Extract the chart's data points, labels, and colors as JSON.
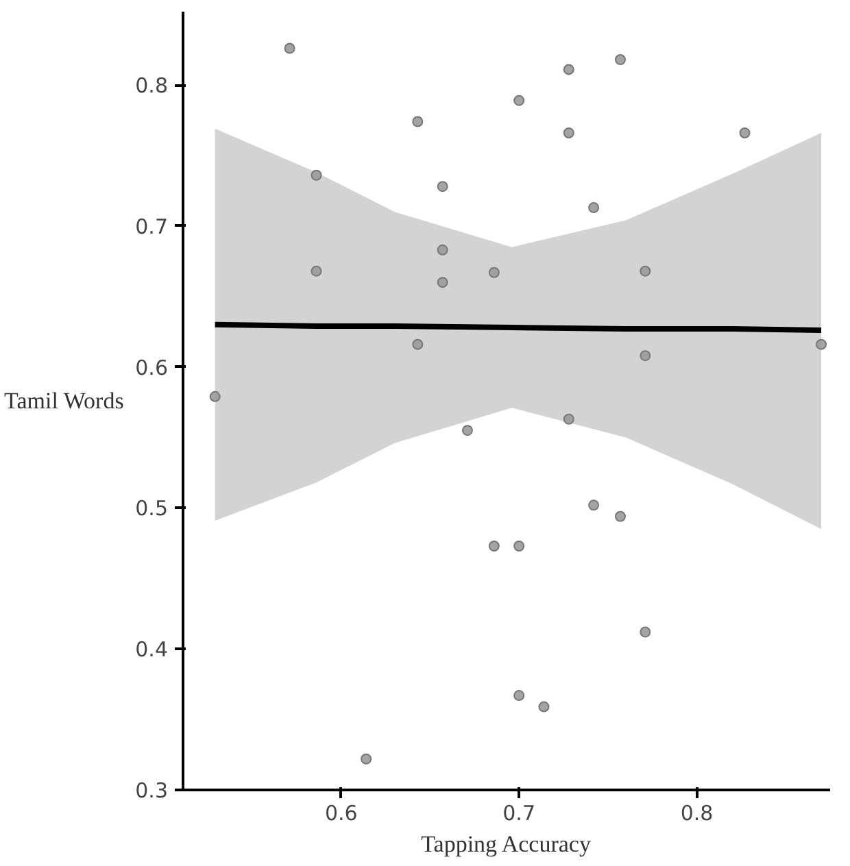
{
  "chart_data": {
    "type": "scatter",
    "xlabel": "Tapping Accuracy",
    "ylabel": "Tamil Words",
    "xlim": [
      0.511,
      0.875
    ],
    "ylim": [
      0.3,
      0.852
    ],
    "xticks": [
      0.6,
      0.7,
      0.8
    ],
    "yticks": [
      0.3,
      0.4,
      0.5,
      0.6,
      0.7,
      0.8
    ],
    "grid": false,
    "marker": "circle",
    "series": [
      {
        "color": "#9a9a9a",
        "x": [
          0.571,
          0.728,
          0.757,
          0.7,
          0.643,
          0.728,
          0.827,
          0.586,
          0.657,
          0.742,
          0.657,
          0.586,
          0.686,
          0.771,
          0.657,
          0.643,
          0.771,
          0.87,
          0.529,
          0.671,
          0.728,
          0.742,
          0.757,
          0.686,
          0.7,
          0.771,
          0.7,
          0.714,
          0.614
        ],
        "values": [
          0.826,
          0.811,
          0.818,
          0.789,
          0.774,
          0.766,
          0.766,
          0.736,
          0.728,
          0.713,
          0.683,
          0.668,
          0.667,
          0.668,
          0.66,
          0.616,
          0.608,
          0.616,
          0.579,
          0.555,
          0.563,
          0.502,
          0.494,
          0.473,
          0.473,
          0.412,
          0.367,
          0.359,
          0.322
        ]
      },
      {
        "type": "line",
        "marker": "none",
        "color": "#000000",
        "x": [
          0.529,
          0.586,
          0.63,
          0.696,
          0.76,
          0.82,
          0.87
        ],
        "values": [
          0.63,
          0.629,
          0.629,
          0.628,
          0.627,
          0.627,
          0.626
        ],
        "lower": [
          0.491,
          0.518,
          0.546,
          0.571,
          0.55,
          0.517,
          0.485
        ],
        "upper": [
          0.769,
          0.738,
          0.71,
          0.685,
          0.704,
          0.737,
          0.766
        ]
      }
    ]
  }
}
